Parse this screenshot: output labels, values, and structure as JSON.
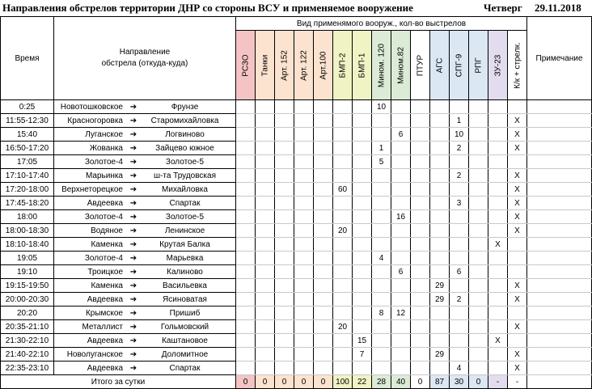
{
  "header": {
    "title": "Направления обстрелов территории ДНР со стороны ВСУ и применяемое вооружение",
    "day": "Четверг",
    "date": "29.11.2018"
  },
  "columns": {
    "time": "Время",
    "direction_l1": "Направление",
    "direction_l2": "обстрела (откуда-куда)",
    "weapons_group": "Вид применямого вооруж., кол-во выстрелов",
    "notes": "Примечание",
    "weapons": [
      {
        "label": "РСЗО",
        "color": "#f4c4c4"
      },
      {
        "label": "Танки",
        "color": "#fce3cf"
      },
      {
        "label": "Арт. 152",
        "color": "#fce3cf"
      },
      {
        "label": "Арт. 122",
        "color": "#fce3cf"
      },
      {
        "label": "Арт.100",
        "color": "#fce3cf"
      },
      {
        "label": "БМП-2",
        "color": "#f0f3c4"
      },
      {
        "label": "БМП-1",
        "color": "#f0f3c4"
      },
      {
        "label": "Мином. 120",
        "color": "#dcebd6"
      },
      {
        "label": "Мином.82",
        "color": "#dcebd6"
      },
      {
        "label": "ПТУР",
        "color": "#ffffff"
      },
      {
        "label": "АГС",
        "color": "#dbe7f3"
      },
      {
        "label": "СПГ-9",
        "color": "#dbe7f3"
      },
      {
        "label": "РПГ",
        "color": "#dbe7f3"
      },
      {
        "label": "ЗУ-23",
        "color": "#e3dcef"
      },
      {
        "label": "К/к +  стрелк.",
        "color": "#ffffff"
      }
    ]
  },
  "rows": [
    {
      "time": "0:25",
      "from": "Новотошковское",
      "to": "Фрунзе",
      "cells": [
        "",
        "",
        "",
        "",
        "",
        "",
        "",
        "10",
        "",
        "",
        "",
        "",
        "",
        "",
        ""
      ]
    },
    {
      "time": "11:55-12:30",
      "from": "Красногоровка",
      "to": "Старомихайловка",
      "cells": [
        "",
        "",
        "",
        "",
        "",
        "",
        "",
        "",
        "",
        "",
        "",
        "1",
        "",
        "",
        "X"
      ]
    },
    {
      "time": "15:40",
      "from": "Луганское",
      "to": "Логвиново",
      "cells": [
        "",
        "",
        "",
        "",
        "",
        "",
        "",
        "",
        "6",
        "",
        "",
        "10",
        "",
        "",
        "X"
      ]
    },
    {
      "time": "16:50-17:20",
      "from": "Жованка",
      "to": "Зайцево южное",
      "cells": [
        "",
        "",
        "",
        "",
        "",
        "",
        "",
        "1",
        "",
        "",
        "",
        "2",
        "",
        "",
        "X"
      ]
    },
    {
      "time": "17:05",
      "from": "Золотое-4",
      "to": "Золотое-5",
      "cells": [
        "",
        "",
        "",
        "",
        "",
        "",
        "",
        "5",
        "",
        "",
        "",
        "",
        "",
        "",
        ""
      ]
    },
    {
      "time": "17:10-17:40",
      "from": "Марьинка",
      "to": "ш-та Трудовская",
      "cells": [
        "",
        "",
        "",
        "",
        "",
        "",
        "",
        "",
        "",
        "",
        "",
        "2",
        "",
        "",
        "X"
      ]
    },
    {
      "time": "17:20-18:00",
      "from": "Верхнеторецкое",
      "to": "Михайловка",
      "cells": [
        "",
        "",
        "",
        "",
        "",
        "60",
        "",
        "",
        "",
        "",
        "",
        "",
        "",
        "",
        "X"
      ]
    },
    {
      "time": "17:45-18:20",
      "from": "Авдеевка",
      "to": "Спартак",
      "cells": [
        "",
        "",
        "",
        "",
        "",
        "",
        "",
        "",
        "",
        "",
        "",
        "3",
        "",
        "",
        "X"
      ]
    },
    {
      "time": "18:00",
      "from": "Золотое-4",
      "to": "Золотое-5",
      "cells": [
        "",
        "",
        "",
        "",
        "",
        "",
        "",
        "",
        "16",
        "",
        "",
        "",
        "",
        "",
        "X"
      ]
    },
    {
      "time": "18:00-18:30",
      "from": "Водяное",
      "to": "Ленинское",
      "cells": [
        "",
        "",
        "",
        "",
        "",
        "20",
        "",
        "",
        "",
        "",
        "",
        "",
        "",
        "",
        "X"
      ]
    },
    {
      "time": "18:10-18:40",
      "from": "Каменка",
      "to": "Крутая Балка",
      "cells": [
        "",
        "",
        "",
        "",
        "",
        "",
        "",
        "",
        "",
        "",
        "",
        "",
        "",
        "X",
        ""
      ]
    },
    {
      "time": "19:05",
      "from": "Золотое-4",
      "to": "Марьевка",
      "cells": [
        "",
        "",
        "",
        "",
        "",
        "",
        "",
        "4",
        "",
        "",
        "",
        "",
        "",
        "",
        ""
      ]
    },
    {
      "time": "19:10",
      "from": "Троицкое",
      "to": "Калиново",
      "cells": [
        "",
        "",
        "",
        "",
        "",
        "",
        "",
        "",
        "6",
        "",
        "",
        "6",
        "",
        "",
        ""
      ]
    },
    {
      "time": "19:15-19:50",
      "from": "Каменка",
      "to": "Васильевка",
      "cells": [
        "",
        "",
        "",
        "",
        "",
        "",
        "",
        "",
        "",
        "",
        "29",
        "",
        "",
        "",
        "X"
      ]
    },
    {
      "time": "20:00-20:30",
      "from": "Авдеевка",
      "to": "Ясиноватая",
      "cells": [
        "",
        "",
        "",
        "",
        "",
        "",
        "",
        "",
        "",
        "",
        "29",
        "2",
        "",
        "",
        "X"
      ]
    },
    {
      "time": "20:20",
      "from": "Крымское",
      "to": "Пришиб",
      "cells": [
        "",
        "",
        "",
        "",
        "",
        "",
        "",
        "8",
        "12",
        "",
        "",
        "",
        "",
        "",
        ""
      ]
    },
    {
      "time": "20:35-21:10",
      "from": "Металлист",
      "to": "Гольмовский",
      "cells": [
        "",
        "",
        "",
        "",
        "",
        "20",
        "",
        "",
        "",
        "",
        "",
        "",
        "",
        "",
        "X"
      ]
    },
    {
      "time": "21:30-22:10",
      "from": "Авдеевка",
      "to": "Каштановое",
      "cells": [
        "",
        "",
        "",
        "",
        "",
        "",
        "15",
        "",
        "",
        "",
        "",
        "",
        "",
        "X",
        ""
      ]
    },
    {
      "time": "21:40-22:10",
      "from": "Новолуганское",
      "to": "Доломитное",
      "cells": [
        "",
        "",
        "",
        "",
        "",
        "",
        "7",
        "",
        "",
        "",
        "29",
        "",
        "",
        "",
        "X"
      ]
    },
    {
      "time": "22:35-23:10",
      "from": "Авдеевка",
      "to": "Спартак",
      "cells": [
        "",
        "",
        "",
        "",
        "",
        "",
        "",
        "",
        "",
        "",
        "",
        "4",
        "",
        "",
        "X"
      ]
    }
  ],
  "totals": {
    "label": "Итого за сутки",
    "values": [
      "0",
      "0",
      "0",
      "0",
      "0",
      "100",
      "22",
      "28",
      "40",
      "0",
      "87",
      "30",
      "0",
      "-",
      "-"
    ]
  }
}
